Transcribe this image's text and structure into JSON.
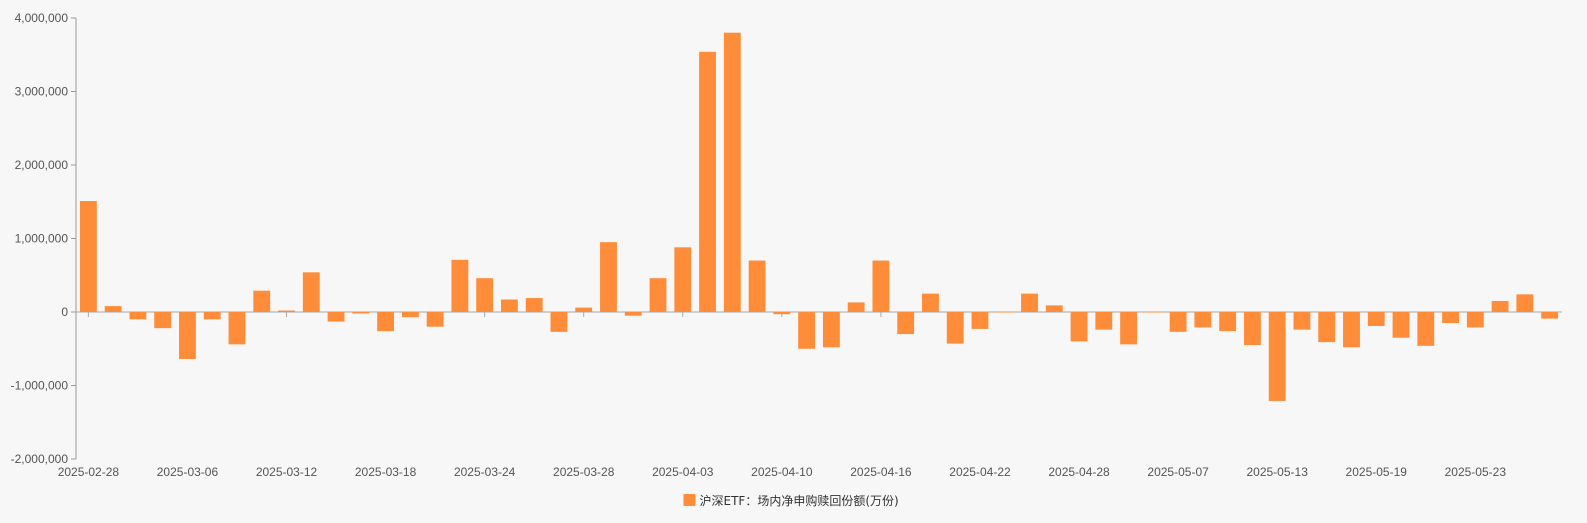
{
  "chart_data": {
    "type": "bar",
    "title": "",
    "xlabel": "",
    "ylabel": "",
    "ylim": [
      -2000000,
      4000000
    ],
    "yticks": [
      -2000000,
      -1000000,
      0,
      1000000,
      2000000,
      3000000,
      4000000
    ],
    "ytick_labels": [
      "-2,000,000",
      "-1,000,000",
      "0",
      "1,000,000",
      "2,000,000",
      "3,000,000",
      "4,000,000"
    ],
    "xtick_labels": [
      "2025-02-28",
      "2025-03-06",
      "2025-03-12",
      "2025-03-18",
      "2025-03-24",
      "2025-03-28",
      "2025-04-03",
      "2025-04-10",
      "2025-04-16",
      "2025-04-22",
      "2025-04-28",
      "2025-05-07",
      "2025-05-13",
      "2025-05-19",
      "2025-05-23"
    ],
    "xtick_every": 4,
    "bar_color": "#ff8c38",
    "legend": {
      "position": "bottom-center",
      "label": "沪深ETF：场内净申购赎回份额(万份)"
    },
    "series": [
      {
        "name": "沪深ETF：场内净申购赎回份额(万份)",
        "values": [
          1510000,
          80000,
          -100000,
          -220000,
          -640000,
          -100000,
          -440000,
          290000,
          20000,
          540000,
          -130000,
          -20000,
          -260000,
          -70000,
          -200000,
          710000,
          460000,
          170000,
          190000,
          -270000,
          60000,
          950000,
          -50000,
          460000,
          880000,
          3540000,
          3800000,
          700000,
          -30000,
          -500000,
          -480000,
          130000,
          700000,
          -300000,
          250000,
          -430000,
          -230000,
          0,
          250000,
          90000,
          -400000,
          -240000,
          -440000,
          0,
          -270000,
          -210000,
          -260000,
          -450000,
          -1210000,
          -240000,
          -410000,
          -480000,
          -190000,
          -350000,
          -460000,
          -150000,
          -210000,
          150000,
          240000,
          -90000
        ]
      }
    ]
  }
}
